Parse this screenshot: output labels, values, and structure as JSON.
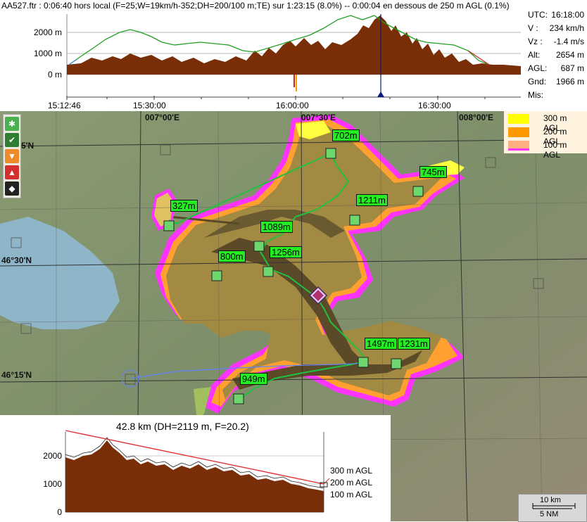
{
  "title": "AA527.ftr : 0:06:40 hors local (F=25;W=19km/h-352;DH=200/100 m;TE) sur 1:23:15 (8.0%) -- 0:00:04  en dessous de 250 m AGL (0.1%)",
  "profile": {
    "y_labels": [
      "2000 m",
      "1000 m",
      "0 m"
    ],
    "x_labels": [
      "15:12:46",
      "15:30:00",
      "16:00:00",
      "16:30:00"
    ]
  },
  "info": [
    {
      "key": "UTC:",
      "value": "16:18:00"
    },
    {
      "key": "V  :",
      "value": "234 km/h"
    },
    {
      "key": "Vz :",
      "value": "-1.4 m/s"
    },
    {
      "key": "Alt:",
      "value": "2654 m"
    },
    {
      "key": "AGL:",
      "value": "687 m"
    },
    {
      "key": "Gnd:",
      "value": "1966 m"
    },
    {
      "key": "Mis:",
      "value": ""
    }
  ],
  "map": {
    "coords": {
      "lon_0700": "007°00'E",
      "lon_0730": "007°30'E",
      "lon_0800": "008°00'E",
      "lat_4645": "5'N",
      "lat_4630": "46°30'N",
      "lat_4615": "46°15'N"
    },
    "waypoints": [
      "702m",
      "745m",
      "327m",
      "1211m",
      "1089m",
      "800m",
      "1256m",
      "1497m",
      "1231m",
      "949m"
    ],
    "legend": [
      {
        "label": "300 m AGL",
        "color": "#ffff00"
      },
      {
        "label": "200 m AGL",
        "color": "#ff9900"
      },
      {
        "label": "100 m AGL",
        "color": "#ff33ff"
      }
    ],
    "scale": {
      "km": "10 km",
      "nm": "5 NM"
    }
  },
  "toolbar": [
    {
      "icon": "gear-icon",
      "color": "#4caf50"
    },
    {
      "icon": "check-icon",
      "color": "#2e7d32"
    },
    {
      "icon": "triangle-down-icon",
      "color": "#ef8a2a"
    },
    {
      "icon": "mountain-icon",
      "color": "#d32f2f"
    },
    {
      "icon": "diamond-icon",
      "color": "#222222"
    }
  ],
  "glide": {
    "title": "42.8 km (DH=2119 m, F=20.2)",
    "y_labels": [
      "2000",
      "1000",
      "0"
    ],
    "agl_labels": [
      "300 m AGL",
      "200 m AGL",
      "100 m AGL"
    ]
  },
  "colors": {
    "terrain": "#7a2e08",
    "glide_line": "#e03030",
    "flight_line": "#20a020",
    "cursor": "#0a1a7a",
    "waypoint_bg": "#22ee22"
  }
}
